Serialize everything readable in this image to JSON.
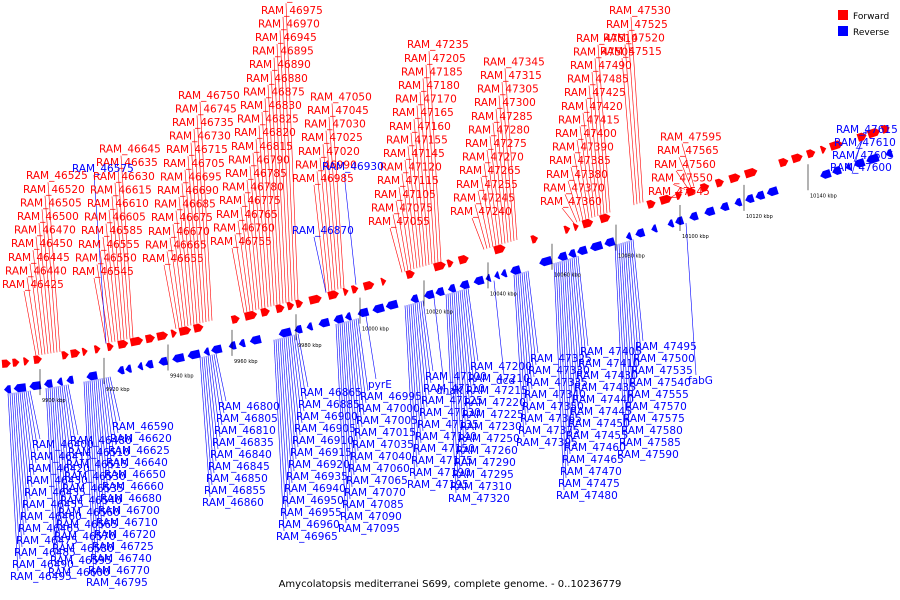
{
  "legend": {
    "forward_label": "Forward",
    "reverse_label": "Reverse",
    "forward_color": "#ff0000",
    "reverse_color": "#0000ff"
  },
  "caption": "Amycolatopsis mediterranei S699, complete genome. - 0..10236779",
  "ticks": [
    "9900 kbp",
    "9920 kbp",
    "9940 kbp",
    "9960 kbp",
    "9980 kbp",
    "10000 kbp",
    "10020 kbp",
    "10040 kbp",
    "10060 kbp",
    "10080 kbp",
    "10100 kbp",
    "10120 kbp",
    "10140 kbp"
  ],
  "forward_genes": [
    "RAM_46425",
    "RAM_46440",
    "RAM_46445",
    "RAM_46450",
    "RAM_46470",
    "RAM_46500",
    "RAM_46505",
    "RAM_46520",
    "RAM_46525",
    "RAM_46545",
    "RAM_46550",
    "RAM_46555",
    "RAM_46585",
    "RAM_46605",
    "RAM_46610",
    "RAM_46615",
    "RAM_46630",
    "RAM_46635",
    "RAM_46645",
    "RAM_46655",
    "RAM_46665",
    "RAM_46670",
    "RAM_46675",
    "RAM_46685",
    "RAM_46690",
    "RAM_46695",
    "RAM_46705",
    "RAM_46715",
    "RAM_46730",
    "RAM_46735",
    "RAM_46745",
    "RAM_46750",
    "RAM_46755",
    "RAM_46760",
    "RAM_46765",
    "RAM_46775",
    "RAM_46780",
    "RAM_46785",
    "RAM_46790",
    "RAM_46815",
    "RAM_46820",
    "RAM_46825",
    "RAM_46830",
    "RAM_46875",
    "RAM_46880",
    "RAM_46890",
    "RAM_46895",
    "RAM_46945",
    "RAM_46970",
    "RAM_46975",
    "RAM_46980",
    "RAM_46985",
    "RAM_46990",
    "RAM_47020",
    "RAM_47025",
    "RAM_47030",
    "RAM_47045",
    "RAM_47050",
    "RAM_47055",
    "RAM_47075",
    "RAM_47105",
    "RAM_47115",
    "RAM_47120",
    "RAM_47145",
    "RAM_47155",
    "RAM_47160",
    "RAM_47165",
    "RAM_47170",
    "RAM_47180",
    "RAM_47185",
    "RAM_47205",
    "RAM_47235",
    "RAM_47240",
    "RAM_47245",
    "RAM_47255",
    "RAM_47265",
    "RAM_47270",
    "RAM_47275",
    "RAM_47280",
    "RAM_47285",
    "RAM_47300",
    "RAM_47305",
    "RAM_47315",
    "RAM_47345",
    "RAM_47360",
    "RAM_47370",
    "RAM_47380",
    "RAM_47385",
    "RAM_47390",
    "RAM_47400",
    "RAM_47415",
    "RAM_47420",
    "RAM_47425",
    "RAM_47485",
    "RAM_47490",
    "RAM_47505",
    "RAM_47510",
    "RAM_47515",
    "RAM_47520",
    "RAM_47525",
    "RAM_47530",
    "RAM_47545",
    "RAM_47550",
    "RAM_47560",
    "RAM_47565",
    "RAM_47595"
  ],
  "reverse_top_genes": [
    "RAM_46575",
    "RAM_46930",
    "RAM_46870",
    "RAM_47615",
    "RAM_47610",
    "RAM_47605",
    "RAM_47600"
  ],
  "reverse_genes": [
    "RAM_46400",
    "RAM_46415",
    "RAM_46420",
    "RAM_46430",
    "RAM_46435",
    "RAM_46455",
    "RAM_46460",
    "RAM_46465",
    "RAM_46475",
    "RAM_46485",
    "RAM_46490",
    "RAM_46495",
    "RAM_46480",
    "RAM_46510",
    "RAM_46515",
    "RAM_46530",
    "RAM_46535",
    "RAM_46540",
    "RAM_46560",
    "RAM_46565",
    "RAM_46570",
    "RAM_46580",
    "RAM_46595",
    "RAM_46600",
    "RAM_46590",
    "RAM_46620",
    "RAM_46625",
    "RAM_46640",
    "RAM_46650",
    "RAM_46660",
    "RAM_46680",
    "RAM_46700",
    "RAM_46710",
    "RAM_46720",
    "RAM_46725",
    "RAM_46740",
    "RAM_46770",
    "RAM_46795",
    "RAM_46800",
    "RAM_46805",
    "RAM_46810",
    "RAM_46835",
    "RAM_46840",
    "RAM_46845",
    "RAM_46850",
    "RAM_46855",
    "RAM_46860",
    "RAM_46865",
    "RAM_46885",
    "RAM_46900",
    "RAM_46905",
    "RAM_46910",
    "RAM_46915",
    "RAM_46920",
    "RAM_46935",
    "RAM_46940",
    "RAM_46950",
    "RAM_46955",
    "RAM_46960",
    "RAM_46965",
    "RAM_46995",
    "RAM_47000",
    "RAM_47005",
    "RAM_47015",
    "RAM_47035",
    "RAM_47040",
    "RAM_47060",
    "RAM_47065",
    "RAM_47070",
    "RAM_47085",
    "RAM_47090",
    "RAM_47095",
    "RAM_47100",
    "RAM_47110",
    "RAM_47125",
    "RAM_47130",
    "RAM_47135",
    "RAM_47140",
    "RAM_47150",
    "RAM_47175",
    "RAM_47190",
    "RAM_47195",
    "RAM_47200",
    "RAM_47210",
    "RAM_47215",
    "RAM_47220",
    "RAM_47225",
    "RAM_47230",
    "RAM_47250",
    "RAM_47260",
    "RAM_47290",
    "RAM_47295",
    "RAM_47310",
    "RAM_47320",
    "RAM_47325",
    "RAM_47330",
    "RAM_47335",
    "RAM_47340",
    "RAM_47350",
    "RAM_47365",
    "RAM_47375",
    "RAM_47395",
    "RAM_47405",
    "RAM_47410",
    "RAM_47430",
    "RAM_47435",
    "RAM_47440",
    "RAM_47445",
    "RAM_47450",
    "RAM_47455",
    "RAM_47460",
    "RAM_47465",
    "RAM_47470",
    "RAM_47475",
    "RAM_47480",
    "RAM_47495",
    "RAM_47500",
    "RAM_47535",
    "RAM_47540",
    "RAM_47555",
    "RAM_47570",
    "RAM_47575",
    "RAM_47580",
    "RAM_47585",
    "RAM_47590",
    "pyrE",
    "dnaK",
    "dcd",
    "fabG"
  ]
}
